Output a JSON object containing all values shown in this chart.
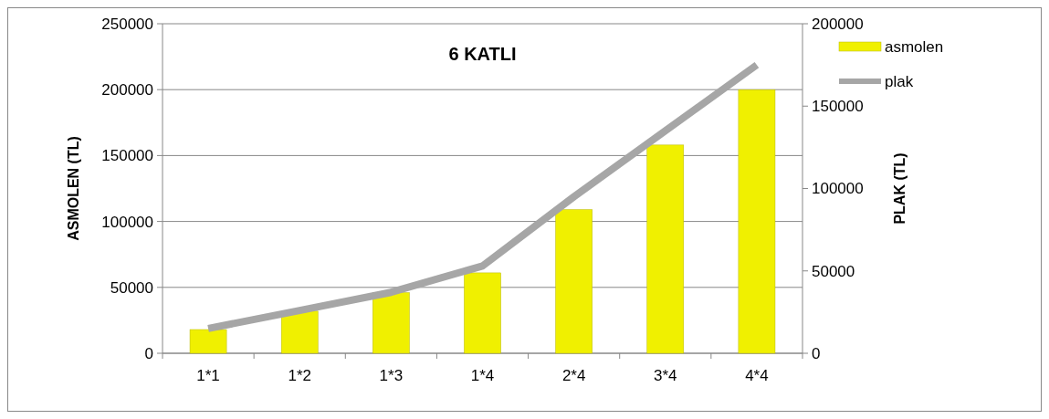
{
  "chart_data": {
    "type": "bar",
    "title": "6 KATLI",
    "ylabel": "ASMOLEN (TL)",
    "y2label": "PLAK (TL)",
    "categories": [
      "1*1",
      "1*2",
      "1*3",
      "1*4",
      "2*4",
      "3*4",
      "4*4"
    ],
    "series": [
      {
        "name": "asmolen",
        "color": "#f0f000",
        "values": [
          18000,
          32000,
          46000,
          61000,
          109000,
          158000,
          200000
        ]
      },
      {
        "name": "plak",
        "type": "line",
        "axis": "y2",
        "color": "#a6a6a6",
        "values": [
          15000,
          26000,
          37000,
          53000,
          95000,
          135000,
          175000
        ]
      }
    ],
    "ylim": [
      0,
      250000
    ],
    "yticks": [
      0,
      50000,
      100000,
      150000,
      200000,
      250000
    ],
    "y2lim": [
      0,
      200000
    ],
    "y2ticks": [
      0,
      50000,
      100000,
      150000,
      200000
    ],
    "grid": "y",
    "legend": "top right",
    "marker": "none"
  }
}
